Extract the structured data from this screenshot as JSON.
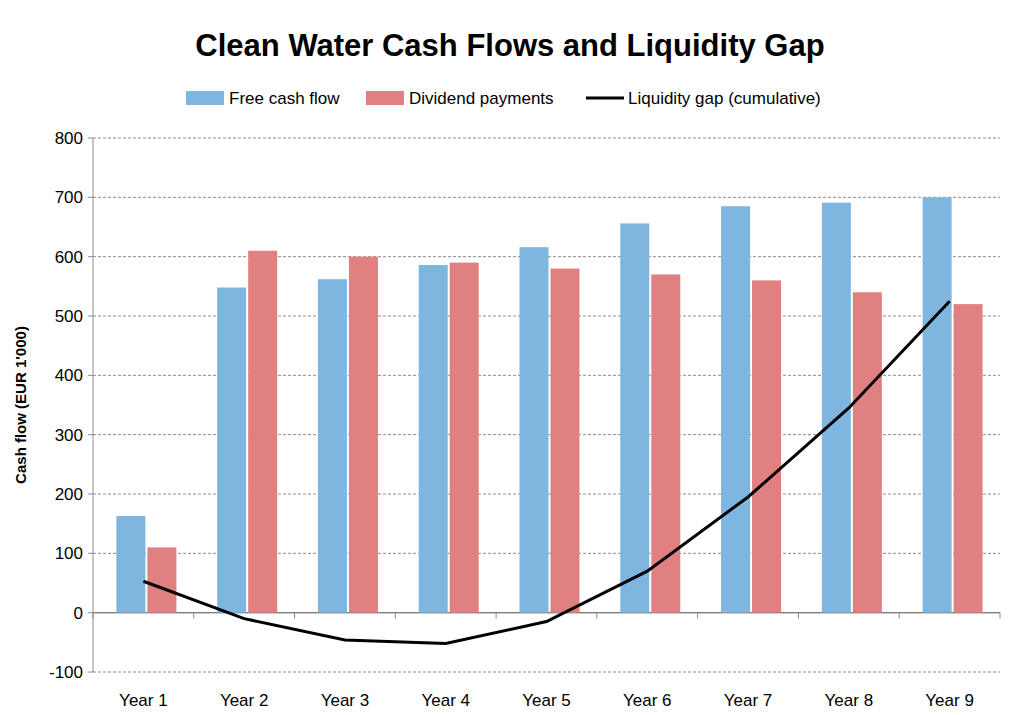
{
  "chart_data": {
    "type": "bar",
    "title": "Clean Water Cash Flows and Liquidity Gap",
    "y_label": "Cash flow (EUR 1'000)",
    "categories": [
      "Year 1",
      "Year 2",
      "Year 3",
      "Year 4",
      "Year 5",
      "Year 6",
      "Year 7",
      "Year 8",
      "Year 9"
    ],
    "series": [
      {
        "name": "Free cash flow",
        "type": "bar",
        "color": "#7fb6e0",
        "values": [
          163,
          548,
          562,
          586,
          616,
          656,
          685,
          691,
          700
        ]
      },
      {
        "name": "Dividend payments",
        "type": "bar",
        "color": "#e08080",
        "values": [
          110,
          610,
          600,
          590,
          580,
          570,
          560,
          540,
          520
        ]
      },
      {
        "name": "Liquidity gap (cumulative)",
        "type": "line",
        "color": "#000000",
        "values": [
          53,
          -10,
          -46,
          -52,
          -15,
          70,
          195,
          345,
          525
        ]
      }
    ],
    "ylim": [
      -100,
      800
    ],
    "yticks": [
      -100,
      0,
      100,
      200,
      300,
      400,
      500,
      600,
      700,
      800
    ],
    "grid": true,
    "legend": "top"
  }
}
